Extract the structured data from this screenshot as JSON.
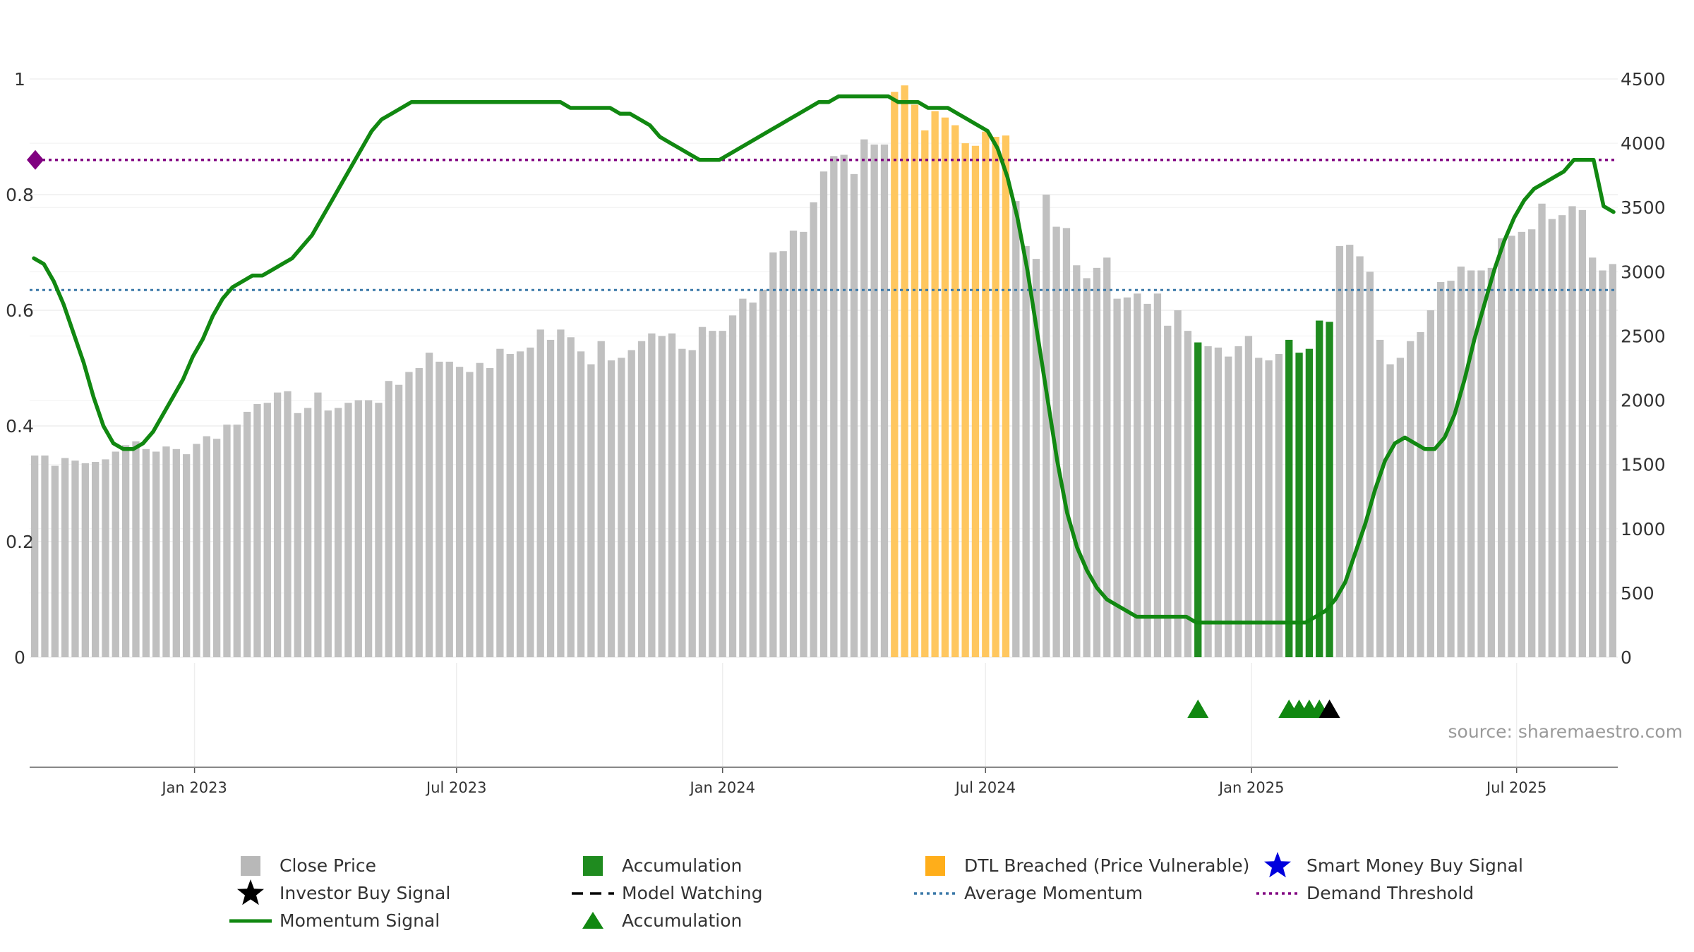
{
  "chart_data": {
    "type": "bar+line",
    "title": "",
    "source_note": "source: sharemaestro.com",
    "left_axis": {
      "ticks": [
        0,
        0.2,
        0.4,
        0.6,
        0.8,
        1
      ],
      "tick_labels": [
        "0",
        "0.2",
        "0.4",
        "0.6",
        "0.8",
        "1"
      ],
      "range": [
        0,
        1
      ]
    },
    "right_axis": {
      "ticks": [
        0,
        500,
        1000,
        1500,
        2000,
        2500,
        3000,
        3500,
        4000,
        4500
      ],
      "tick_labels": [
        "0",
        "500",
        "1000",
        "1500",
        "2000",
        "2500",
        "3000",
        "3500",
        "4000",
        "4500"
      ],
      "range": [
        0,
        4680
      ]
    },
    "x_axis": {
      "ticks": [
        {
          "label": "Jan 2023",
          "index": 16.3
        },
        {
          "label": "Jul 2023",
          "index": 42.2
        },
        {
          "label": "Jan 2024",
          "index": 68.5
        },
        {
          "label": "Jul 2024",
          "index": 94.5
        },
        {
          "label": "Jan 2025",
          "index": 120.8
        },
        {
          "label": "Jul 2025",
          "index": 147.0
        }
      ]
    },
    "grid": true,
    "legend_position": "bottom",
    "close_prices": [
      1570,
      1570,
      1490,
      1550,
      1530,
      1510,
      1520,
      1540,
      1600,
      1650,
      1680,
      1620,
      1600,
      1640,
      1620,
      1580,
      1660,
      1720,
      1700,
      1810,
      1810,
      1910,
      1970,
      1980,
      2060,
      2070,
      1900,
      1940,
      2060,
      1920,
      1940,
      1980,
      2000,
      2000,
      1980,
      2150,
      2120,
      2220,
      2250,
      2370,
      2300,
      2300,
      2260,
      2220,
      2290,
      2250,
      2400,
      2360,
      2380,
      2410,
      2550,
      2470,
      2550,
      2490,
      2380,
      2280,
      2460,
      2310,
      2330,
      2390,
      2460,
      2520,
      2500,
      2520,
      2400,
      2390,
      2570,
      2540,
      2540,
      2660,
      2790,
      2760,
      2860,
      3150,
      3160,
      3320,
      3310,
      3540,
      3780,
      3900,
      3910,
      3760,
      4030,
      3990,
      3990,
      4400,
      4450,
      4300,
      4100,
      4250,
      4200,
      4140,
      4000,
      3980,
      4090,
      4050,
      4060,
      3550,
      3200,
      3100,
      3600,
      3350,
      3340,
      3050,
      2950,
      3030,
      3110,
      2790,
      2800,
      2830,
      2750,
      2830,
      2580,
      2700,
      2540,
      2450,
      2420,
      2410,
      2340,
      2420,
      2500,
      2330,
      2310,
      2360,
      2470,
      2370,
      2400,
      2620,
      2610,
      3200,
      3210,
      3120,
      3000,
      2470,
      2280,
      2330,
      2460,
      2530,
      2700,
      2920,
      2930,
      3040,
      3010,
      3010,
      3030,
      3260,
      3280,
      3310,
      3330,
      3530,
      3410,
      3440,
      3510,
      3480,
      3110,
      3010,
      3060
    ],
    "bar_highlights": {
      "dtl_breached": [
        85,
        86,
        87,
        88,
        89,
        90,
        91,
        92,
        93,
        94,
        95,
        96
      ],
      "accumulation": [
        115,
        124,
        125,
        126,
        127,
        128
      ]
    },
    "momentum_signal": [
      0.69,
      0.68,
      0.65,
      0.61,
      0.56,
      0.51,
      0.45,
      0.4,
      0.37,
      0.36,
      0.36,
      0.37,
      0.39,
      0.42,
      0.45,
      0.48,
      0.52,
      0.55,
      0.59,
      0.62,
      0.64,
      0.65,
      0.66,
      0.66,
      0.67,
      0.68,
      0.69,
      0.71,
      0.73,
      0.76,
      0.79,
      0.82,
      0.85,
      0.88,
      0.91,
      0.93,
      0.94,
      0.95,
      0.96,
      0.96,
      0.96,
      0.96,
      0.96,
      0.96,
      0.96,
      0.96,
      0.96,
      0.96,
      0.96,
      0.96,
      0.96,
      0.96,
      0.96,
      0.96,
      0.95,
      0.95,
      0.95,
      0.95,
      0.95,
      0.94,
      0.94,
      0.93,
      0.92,
      0.9,
      0.89,
      0.88,
      0.87,
      0.86,
      0.86,
      0.86,
      0.87,
      0.88,
      0.89,
      0.9,
      0.91,
      0.92,
      0.93,
      0.94,
      0.95,
      0.96,
      0.96,
      0.97,
      0.97,
      0.97,
      0.97,
      0.97,
      0.97,
      0.96,
      0.96,
      0.96,
      0.95,
      0.95,
      0.95,
      0.94,
      0.93,
      0.92,
      0.91,
      0.88,
      0.83,
      0.76,
      0.67,
      0.56,
      0.45,
      0.34,
      0.25,
      0.19,
      0.15,
      0.12,
      0.1,
      0.09,
      0.08,
      0.07,
      0.07,
      0.07,
      0.07,
      0.07,
      0.07,
      0.06,
      0.06,
      0.06,
      0.06,
      0.06,
      0.06,
      0.06,
      0.06,
      0.06,
      0.06,
      0.06,
      0.06,
      0.07,
      0.08,
      0.1,
      0.13,
      0.18,
      0.23,
      0.29,
      0.34,
      0.37,
      0.38,
      0.37,
      0.36,
      0.36,
      0.38,
      0.42,
      0.48,
      0.55,
      0.61,
      0.67,
      0.72,
      0.76,
      0.79,
      0.81,
      0.82,
      0.83,
      0.84,
      0.86,
      0.86,
      0.86,
      0.78,
      0.77
    ],
    "momentum_signal_note": "line is drawn on a normalized left scale matching the momentum signal",
    "average_momentum": 0.635,
    "demand_threshold": 0.86,
    "accumulation_markers": [
      115,
      124,
      125,
      126,
      127
    ],
    "investor_buy_markers": [
      128
    ],
    "colors": {
      "close_price": "#c0c0c0",
      "accumulation": "#1f8b1f",
      "dtl_breached": "#ffc75f",
      "momentum": "#118811",
      "average_momentum": "#3a78a8",
      "demand_threshold": "#800080",
      "investor_buy": "#000000",
      "smart_money": "#0000dd",
      "grid": "#eeeeee"
    }
  },
  "legend": [
    {
      "key": "close",
      "label": "Close Price",
      "symbol": "square",
      "color": "#b8b8b8"
    },
    {
      "key": "acc_bar",
      "label": "Accumulation",
      "symbol": "square",
      "color": "#1f8b1f"
    },
    {
      "key": "dtl",
      "label": "DTL Breached (Price Vulnerable)",
      "symbol": "square",
      "color": "#ffae1a"
    },
    {
      "key": "smart",
      "label": "Smart Money Buy Signal",
      "symbol": "star",
      "color": "#0000dd"
    },
    {
      "key": "investor",
      "label": "Investor Buy Signal",
      "symbol": "star",
      "color": "#000000"
    },
    {
      "key": "watch",
      "label": "Model Watching",
      "symbol": "dash",
      "color": "#000000"
    },
    {
      "key": "avg",
      "label": "Average Momentum",
      "symbol": "dot",
      "color": "#3a78a8"
    },
    {
      "key": "demand",
      "label": "Demand Threshold",
      "symbol": "dot",
      "color": "#800080"
    },
    {
      "key": "momentum",
      "label": "Momentum Signal",
      "symbol": "line",
      "color": "#118811"
    },
    {
      "key": "acc_tri",
      "label": "Accumulation",
      "symbol": "triangle",
      "color": "#118811"
    }
  ]
}
